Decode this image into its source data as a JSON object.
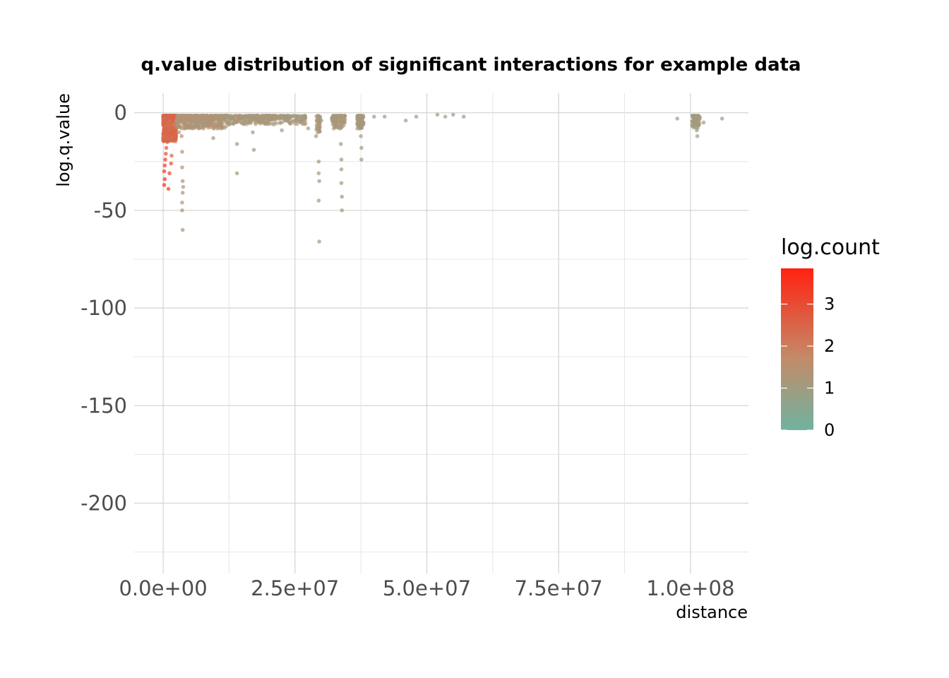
{
  "chart_data": {
    "type": "scatter",
    "title": "q.value distribution of significant interactions for example data",
    "xlabel": "distance",
    "ylabel": "log.q.value",
    "xlim": [
      -5500000,
      111000000
    ],
    "ylim": [
      -236000,
      10000
    ],
    "x_ticks": [
      0,
      25000000,
      50000000,
      75000000,
      100000000
    ],
    "x_tick_labels": [
      "0.0e+00",
      "2.5e+07",
      "5.0e+07",
      "7.5e+07",
      "1.0e+08"
    ],
    "y_ticks": [
      0,
      -50,
      -100,
      -150,
      -200
    ],
    "y_tick_labels": [
      "0",
      "-50",
      "-100",
      "-150",
      "-200"
    ],
    "grid": true,
    "legend": {
      "title": "log.count",
      "position": "right",
      "range": [
        0,
        3.85
      ],
      "ticks": [
        0,
        1,
        2,
        3
      ],
      "tick_labels": [
        "0",
        "1",
        "2",
        "3"
      ],
      "colors": {
        "low": "#6fb3a0",
        "mid": "#c48a68",
        "high": "#ff2210"
      }
    },
    "points": [
      [
        200000,
        -37,
        3.7
      ],
      [
        200000,
        -30,
        3.5
      ],
      [
        300000,
        -27,
        3.4
      ],
      [
        400000,
        -24,
        3.3
      ],
      [
        500000,
        -21,
        3.0
      ],
      [
        300000,
        -34,
        3.6
      ],
      [
        600000,
        -18,
        2.8
      ],
      [
        800000,
        -15,
        2.6
      ],
      [
        1000000,
        -12,
        2.4
      ],
      [
        1200000,
        -9,
        2.3
      ],
      [
        1500000,
        -26,
        2.9
      ],
      [
        1200000,
        -31,
        3.1
      ],
      [
        1000000,
        -39,
        3.4
      ],
      [
        1600000,
        -22,
        2.5
      ],
      [
        2000000,
        -6,
        1.9
      ],
      [
        2500000,
        -4,
        1.7
      ],
      [
        3000000,
        -10,
        1.6
      ],
      [
        3500000,
        -12,
        1.5
      ],
      [
        3600000,
        -20,
        1.4
      ],
      [
        3600000,
        -28,
        1.4
      ],
      [
        3700000,
        -35,
        1.3
      ],
      [
        3700000,
        -41,
        1.3
      ],
      [
        3600000,
        -46,
        1.3
      ],
      [
        3600000,
        -50,
        1.3
      ],
      [
        3700000,
        -60,
        1.2
      ],
      [
        3800000,
        -38,
        1.3
      ],
      [
        4000000,
        -8,
        1.2
      ],
      [
        5000000,
        -4,
        1.1
      ],
      [
        6000000,
        -7,
        1.0
      ],
      [
        7000000,
        -3,
        1.0
      ],
      [
        8000000,
        -6,
        1.0
      ],
      [
        9500000,
        -13,
        1.1
      ],
      [
        11000000,
        -3,
        0.9
      ],
      [
        12500000,
        -6,
        0.9
      ],
      [
        14000000,
        -31,
        1.1
      ],
      [
        14000000,
        -16,
        1.0
      ],
      [
        15500000,
        -4,
        0.9
      ],
      [
        17000000,
        -10,
        1.0
      ],
      [
        17200000,
        -19,
        1.0
      ],
      [
        19000000,
        -5,
        0.9
      ],
      [
        21000000,
        -6,
        0.9
      ],
      [
        22500000,
        -9,
        1.0
      ],
      [
        24000000,
        -2,
        0.9
      ],
      [
        26500000,
        -3,
        0.9
      ],
      [
        27500000,
        -8,
        1.0
      ],
      [
        29000000,
        -12,
        1.0
      ],
      [
        29500000,
        -25,
        1.1
      ],
      [
        29500000,
        -31,
        1.1
      ],
      [
        29600000,
        -35,
        1.1
      ],
      [
        29500000,
        -45,
        1.2
      ],
      [
        29600000,
        -66,
        1.2
      ],
      [
        30000000,
        -4,
        0.9
      ],
      [
        32000000,
        -3,
        0.9
      ],
      [
        33500000,
        -8,
        1.0
      ],
      [
        33700000,
        -16,
        1.0
      ],
      [
        33800000,
        -24,
        1.1
      ],
      [
        33800000,
        -29,
        1.1
      ],
      [
        33800000,
        -36,
        1.2
      ],
      [
        33900000,
        -43,
        1.2
      ],
      [
        33900000,
        -50,
        1.2
      ],
      [
        37000000,
        -5,
        1.0
      ],
      [
        37500000,
        -12,
        1.0
      ],
      [
        37600000,
        -18,
        1.1
      ],
      [
        37600000,
        -24,
        1.1
      ],
      [
        40000000,
        -2,
        0.8
      ],
      [
        42000000,
        -2,
        0.8
      ],
      [
        46000000,
        -4,
        0.9
      ],
      [
        48000000,
        -2,
        0.8
      ],
      [
        52000000,
        -1,
        0.8
      ],
      [
        53500000,
        -2,
        0.8
      ],
      [
        55000000,
        -1,
        0.8
      ],
      [
        57000000,
        -2,
        0.8
      ],
      [
        97500000,
        -3,
        0.8
      ],
      [
        100500000,
        -2,
        0.9
      ],
      [
        101000000,
        -6,
        0.9
      ],
      [
        101200000,
        -9,
        1.0
      ],
      [
        101300000,
        -12,
        1.0
      ],
      [
        102500000,
        -5,
        0.9
      ],
      [
        106000000,
        -3,
        0.8
      ]
    ]
  }
}
